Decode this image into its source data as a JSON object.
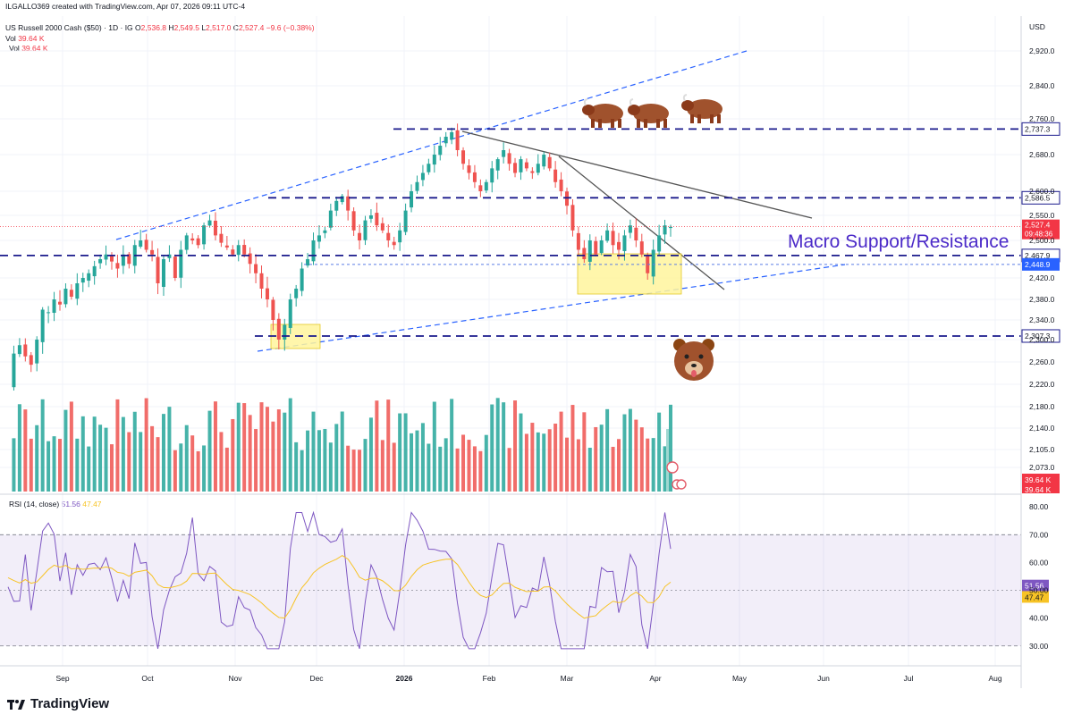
{
  "header": {
    "author_line": "ILGALLO369 created with TradingView.com, Apr 07, 2026 09:11 UTC-4",
    "symbol": "US Russell 2000 Cash ($50) · 1D · IG",
    "ohlc": {
      "o_label": "O",
      "o": "2,536.8",
      "h_label": "H",
      "h": "2,549.5",
      "l_label": "L",
      "l": "2,517.0",
      "c_label": "C",
      "c": "2,527.4",
      "change": "−9.6 (−0.38%)"
    },
    "vol1_label": "Vol",
    "vol1": "39.64 K",
    "vol2_label": "Vol",
    "vol2": "39.64 K",
    "currency": "USD"
  },
  "rsi_header": {
    "label": "RSI (14, close)",
    "rsi": "51.56",
    "ma": "47.47"
  },
  "annotation": {
    "text": "Macro Support/Resistance"
  },
  "branding": {
    "text": "TradingView"
  },
  "colors": {
    "up": "#26a69a",
    "down": "#ef5350",
    "level_line": "#1a1a8c",
    "trend_blue": "#2962ff",
    "rsi_line": "#7e57c2",
    "rsi_ma": "#f7c325",
    "highlight": "#fff59d"
  },
  "chart_data": [
    {
      "type": "candlestick",
      "title": "US Russell 2000 Cash ($50) · 1D · IG",
      "x_ticks": [
        "Sep",
        "Oct",
        "Nov",
        "Dec",
        "2026",
        "Feb",
        "Mar",
        "Apr",
        "May",
        "Jun",
        "Jul",
        "Aug"
      ],
      "y_ticks": [
        "2,920.0",
        "2,840.0",
        "2,760.0",
        "2,680.0",
        "2,600.0",
        "2,550.0",
        "2,500.0",
        "2,420.0",
        "2,380.0",
        "2,340.0",
        "2,300.0",
        "2,260.0",
        "2,220.0",
        "2,180.0",
        "2,140.0",
        "2,105.0",
        "2,073.0"
      ],
      "ylim": [
        2045,
        2950
      ],
      "levels": [
        {
          "value": 2737.3,
          "label": "2,737.3",
          "style": "dashed-navy"
        },
        {
          "value": 2586.5,
          "label": "2,586.5",
          "style": "dashed-navy"
        },
        {
          "value": 2467.9,
          "label": "2,467.9",
          "style": "dashed-navy"
        },
        {
          "value": 2448.9,
          "label": "2,448.9",
          "style": "dotted-blue"
        },
        {
          "value": 2307.3,
          "label": "2,307.3",
          "style": "dashed-navy"
        }
      ],
      "last_price": {
        "value": 2527.4,
        "label": "2,527.4",
        "countdown": "09:48:36"
      },
      "volume_badges": [
        "39.64 K",
        "39.64 K"
      ],
      "price_path": [
        2215,
        2275,
        2290,
        2270,
        2255,
        2300,
        2360,
        2355,
        2380,
        2370,
        2400,
        2385,
        2410,
        2420,
        2430,
        2445,
        2460,
        2470,
        2455,
        2440,
        2470,
        2450,
        2490,
        2500,
        2480,
        2470,
        2410,
        2460,
        2470,
        2420,
        2480,
        2510,
        2500,
        2490,
        2530,
        2540,
        2510,
        2495,
        2485,
        2470,
        2490,
        2470,
        2450,
        2430,
        2400,
        2380,
        2340,
        2300,
        2330,
        2380,
        2400,
        2440,
        2460,
        2500,
        2510,
        2520,
        2560,
        2580,
        2590,
        2560,
        2520,
        2500,
        2540,
        2550,
        2530,
        2520,
        2500,
        2490,
        2520,
        2560,
        2600,
        2620,
        2640,
        2660,
        2680,
        2700,
        2720,
        2730,
        2690,
        2660,
        2640,
        2620,
        2600,
        2620,
        2650,
        2670,
        2690,
        2660,
        2640,
        2670,
        2650,
        2640,
        2660,
        2680,
        2650,
        2620,
        2600,
        2570,
        2520,
        2480,
        2460,
        2500,
        2470,
        2500,
        2520,
        2490,
        2480,
        2510,
        2530,
        2500,
        2470,
        2430,
        2480,
        2510,
        2530,
        2527
      ],
      "rsi": {
        "ylim": [
          25,
          82
        ],
        "y_ticks": [
          "80.00",
          "70.00",
          "60.00",
          "50.00",
          "40.00",
          "30.00"
        ],
        "band": [
          30,
          70
        ],
        "current": {
          "rsi": 51.56,
          "ma": 47.47,
          "rsi_label": "51.56",
          "ma_label": "47.47"
        }
      }
    }
  ]
}
